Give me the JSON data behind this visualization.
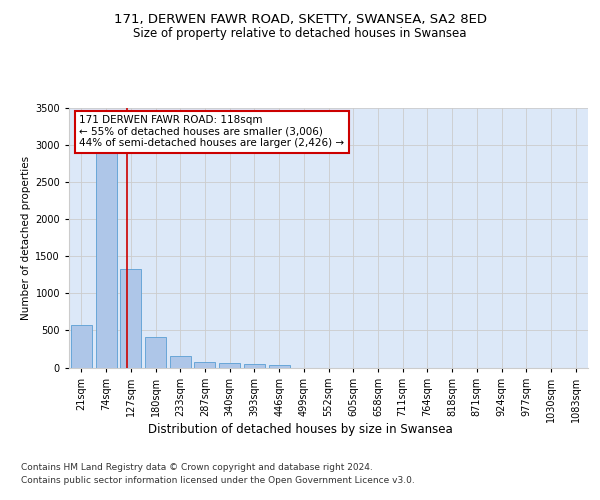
{
  "title_line1": "171, DERWEN FAWR ROAD, SKETTY, SWANSEA, SA2 8ED",
  "title_line2": "Size of property relative to detached houses in Swansea",
  "xlabel": "Distribution of detached houses by size in Swansea",
  "ylabel": "Number of detached properties",
  "footer_line1": "Contains HM Land Registry data © Crown copyright and database right 2024.",
  "footer_line2": "Contains public sector information licensed under the Open Government Licence v3.0.",
  "bin_labels": [
    "21sqm",
    "74sqm",
    "127sqm",
    "180sqm",
    "233sqm",
    "287sqm",
    "340sqm",
    "393sqm",
    "446sqm",
    "499sqm",
    "552sqm",
    "605sqm",
    "658sqm",
    "711sqm",
    "764sqm",
    "818sqm",
    "871sqm",
    "924sqm",
    "977sqm",
    "1030sqm",
    "1083sqm"
  ],
  "bar_values": [
    570,
    2920,
    1320,
    410,
    155,
    80,
    55,
    45,
    40,
    0,
    0,
    0,
    0,
    0,
    0,
    0,
    0,
    0,
    0,
    0,
    0
  ],
  "bar_color": "#aec6e8",
  "bar_edge_color": "#5a9fd4",
  "annotation_line1": "171 DERWEN FAWR ROAD: 118sqm",
  "annotation_line2": "← 55% of detached houses are smaller (3,006)",
  "annotation_line3": "44% of semi-detached houses are larger (2,426) →",
  "annotation_box_color": "#ffffff",
  "annotation_box_edge_color": "#cc0000",
  "vline_color": "#cc0000",
  "ylim": [
    0,
    3500
  ],
  "yticks": [
    0,
    500,
    1000,
    1500,
    2000,
    2500,
    3000,
    3500
  ],
  "grid_color": "#cccccc",
  "background_color": "#dce8f8",
  "title1_fontsize": 9.5,
  "title2_fontsize": 8.5,
  "xlabel_fontsize": 8.5,
  "ylabel_fontsize": 7.5,
  "tick_fontsize": 7,
  "annotation_fontsize": 7.5,
  "footer_fontsize": 6.5
}
